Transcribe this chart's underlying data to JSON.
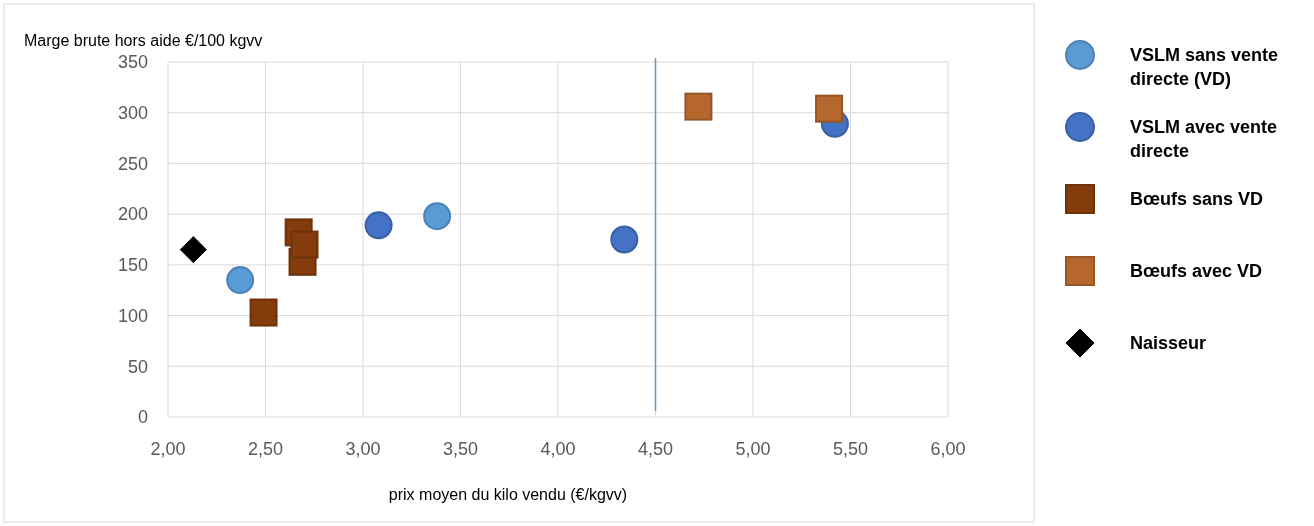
{
  "chart_data": {
    "type": "scatter",
    "xlabel": "prix moyen du kilo vendu (€/kgvv)",
    "ylabel": "Marge brute hors aide €/100 kgvv",
    "xlim": [
      2,
      6
    ],
    "xticks": [
      {
        "value": 2,
        "label": "2,00"
      },
      {
        "value": 2.5,
        "label": "2,50"
      },
      {
        "value": 3,
        "label": "3,00"
      },
      {
        "value": 3.5,
        "label": "3,50"
      },
      {
        "value": 4,
        "label": "4,00"
      },
      {
        "value": 4.5,
        "label": "4,50"
      },
      {
        "value": 5,
        "label": "5,00"
      },
      {
        "value": 5.5,
        "label": "5,50"
      },
      {
        "value": 6,
        "label": "6,00"
      }
    ],
    "ylim": [
      0,
      350
    ],
    "yticks": [
      0,
      50,
      100,
      150,
      200,
      250,
      300,
      350
    ],
    "grid": true,
    "legend": "right",
    "ref_lines": [
      {
        "axis": "x",
        "value": 4.5,
        "color": "#5b9bd5"
      }
    ],
    "series": [
      {
        "name": "VSLM sans vente directe (VD)",
        "color": "#5b9bd5",
        "marker": "circle",
        "x": [
          2.37,
          3.38
        ],
        "values": [
          135,
          198
        ]
      },
      {
        "name": "VSLM avec vente directe",
        "color": "#4472c4",
        "marker": "circle",
        "x": [
          3.08,
          4.34,
          5.42
        ],
        "values": [
          189,
          175,
          289
        ]
      },
      {
        "name": "Bœufs sans VD",
        "color": "#843c0c",
        "marker": "square",
        "x": [
          2.49,
          2.7,
          2.67,
          2.69
        ],
        "values": [
          103,
          170,
          182,
          153
        ]
      },
      {
        "name": "Bœufs avec VD",
        "color": "#b5672e",
        "marker": "square",
        "x": [
          4.72,
          5.39
        ],
        "values": [
          306,
          304
        ]
      },
      {
        "name": "Naisseur",
        "color": "#000000",
        "marker": "diamond",
        "x": [
          2.13
        ],
        "values": [
          165
        ]
      }
    ]
  }
}
